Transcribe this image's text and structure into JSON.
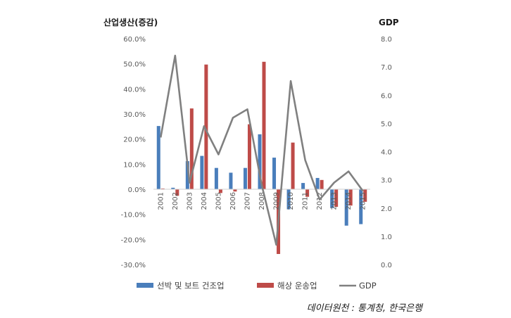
{
  "chart_data": {
    "type": "bar+line",
    "categories": [
      "2001",
      "2002",
      "2003",
      "2004",
      "2005",
      "2006",
      "2007",
      "2008",
      "2009",
      "2010",
      "2011",
      "2012",
      "2013",
      "2014",
      "2015"
    ],
    "series": [
      {
        "name": "선박 및 보트 건조업",
        "type": "bar",
        "axis": "left",
        "color": "#4a7ebb",
        "values": [
          25.2,
          0.6,
          11.2,
          13.3,
          8.5,
          6.6,
          8.5,
          21.9,
          12.6,
          -8.0,
          2.5,
          4.5,
          -7.5,
          -14.5,
          -13.9
        ]
      },
      {
        "name": "해상 운송업",
        "type": "bar",
        "axis": "left",
        "color": "#be4b48",
        "values": [
          0.3,
          -2.6,
          32.2,
          49.7,
          -1.5,
          -0.9,
          25.9,
          50.8,
          -25.8,
          18.6,
          -3.0,
          3.7,
          -7.0,
          -6.5,
          -5.0
        ]
      },
      {
        "name": "GDP",
        "type": "line",
        "axis": "right",
        "color": "#808080",
        "values": [
          4.5,
          7.4,
          2.9,
          4.9,
          3.9,
          5.2,
          5.5,
          2.8,
          0.7,
          6.5,
          3.7,
          2.3,
          2.9,
          3.3,
          2.6
        ]
      }
    ],
    "left_axis": {
      "title": "산업생산(증감)",
      "min": -30,
      "max": 60,
      "step": 10,
      "ticks": [
        "60.0%",
        "50.0%",
        "40.0%",
        "30.0%",
        "20.0%",
        "10.0%",
        "0.0%",
        "-10.0%",
        "-20.0%",
        "-30.0%"
      ]
    },
    "right_axis": {
      "title": "GDP",
      "min": 0,
      "max": 8,
      "step": 1,
      "ticks": [
        "8.0",
        "7.0",
        "6.0",
        "5.0",
        "4.0",
        "3.0",
        "2.0",
        "1.0",
        "0.0"
      ]
    },
    "grid": false,
    "legend_position": "bottom",
    "source": "데이터원천 : 통계청, 한국은행"
  }
}
